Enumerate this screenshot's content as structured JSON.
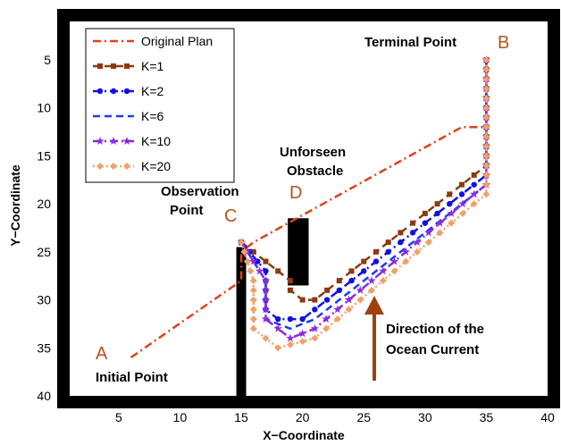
{
  "chart_data": {
    "type": "line",
    "xlabel": "X−Coordinate",
    "ylabel": "Y−Coordinate",
    "xlim": [
      1,
      40
    ],
    "ylim": [
      40,
      1
    ],
    "y_inverted": true,
    "x_ticks": [
      5,
      10,
      15,
      20,
      25,
      30,
      35,
      40
    ],
    "y_ticks": [
      5,
      10,
      15,
      20,
      25,
      30,
      35,
      40
    ],
    "legend_position": "top-left",
    "grid": false,
    "series": [
      {
        "name": "Original Plan",
        "color": "#e0401c",
        "style": "dashdot",
        "marker": "none",
        "points": [
          [
            6,
            36
          ],
          [
            15,
            28
          ],
          [
            15,
            25
          ],
          [
            16,
            24
          ],
          [
            33,
            12
          ],
          [
            35,
            12
          ],
          [
            35,
            5
          ]
        ]
      },
      {
        "name": "K=1",
        "color": "#8b3a10",
        "style": "dashed",
        "marker": "square",
        "points": [
          [
            15,
            24
          ],
          [
            17,
            26
          ],
          [
            19,
            28
          ],
          [
            19,
            29
          ],
          [
            20,
            30
          ],
          [
            21,
            30
          ],
          [
            34,
            17
          ],
          [
            35,
            16
          ],
          [
            35,
            5
          ]
        ]
      },
      {
        "name": "K=2",
        "color": "#1010e0",
        "style": "dashdot",
        "marker": "circle",
        "points": [
          [
            15,
            24
          ],
          [
            17,
            27
          ],
          [
            17,
            31
          ],
          [
            18,
            32
          ],
          [
            20,
            32
          ],
          [
            21,
            31
          ],
          [
            34,
            18
          ],
          [
            35,
            17
          ],
          [
            35,
            5
          ]
        ]
      },
      {
        "name": "K=6",
        "color": "#1a3cf0",
        "style": "dashed",
        "marker": "none",
        "points": [
          [
            15,
            24
          ],
          [
            17,
            28
          ],
          [
            17,
            32
          ],
          [
            19,
            33
          ],
          [
            21,
            32
          ],
          [
            34,
            19
          ],
          [
            35,
            18
          ],
          [
            35,
            5
          ]
        ]
      },
      {
        "name": "K=10",
        "color": "#8a2be2",
        "style": "dashdot",
        "marker": "star",
        "points": [
          [
            15,
            24
          ],
          [
            17,
            28
          ],
          [
            17,
            32
          ],
          [
            19,
            34
          ],
          [
            21,
            33
          ],
          [
            34,
            19
          ],
          [
            35,
            18
          ],
          [
            35,
            5
          ]
        ]
      },
      {
        "name": "K=20",
        "color": "#f2a06a",
        "style": "dotted",
        "marker": "diamond",
        "points": [
          [
            15,
            24
          ],
          [
            16,
            28
          ],
          [
            16,
            33
          ],
          [
            18,
            35
          ],
          [
            21,
            34
          ],
          [
            34,
            20
          ],
          [
            35,
            19
          ],
          [
            35,
            5
          ]
        ]
      }
    ],
    "obstacles": [
      {
        "name": "wall",
        "x": [
          14.6,
          15.4
        ],
        "y": [
          24.5,
          40
        ]
      },
      {
        "name": "unforseen-obstacle",
        "x": [
          18.8,
          20.5
        ],
        "y": [
          21.5,
          28.5
        ]
      }
    ],
    "annotations": {
      "terminal_point": "Terminal Point",
      "terminal_letter": "B",
      "unforseen_line1": "Unforseen",
      "unforseen_line2": "Obstacle",
      "unforseen_letter": "D",
      "observation_line1": "Observation",
      "observation_line2": "Point",
      "observation_letter": "C",
      "initial_point": "Initial Point",
      "initial_letter": "A",
      "current_line1": "Direction of the",
      "current_line2": "Ocean Current",
      "current_arrow_color": "#a0400c"
    }
  }
}
